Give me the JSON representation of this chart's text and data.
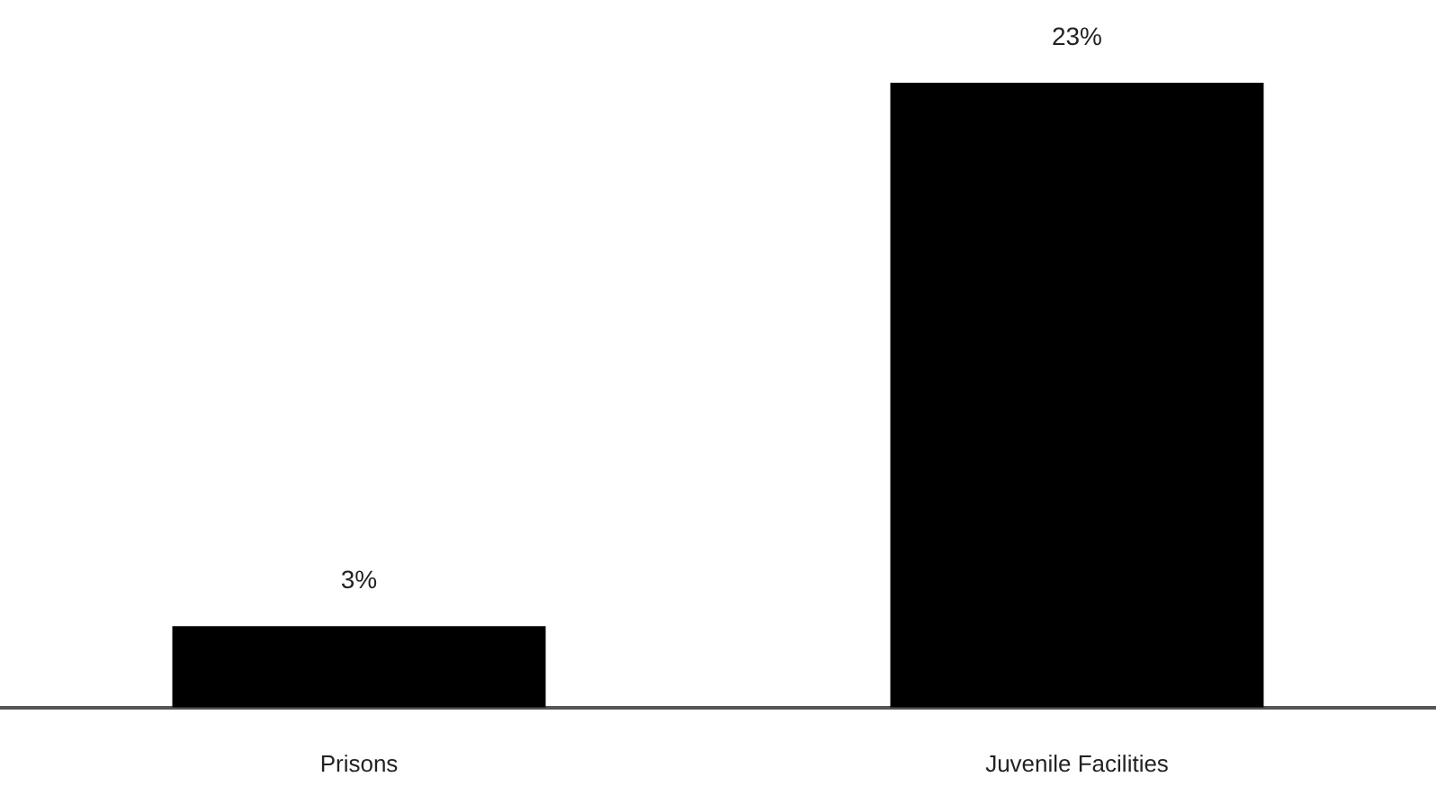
{
  "chart_data": {
    "type": "bar",
    "categories": [
      "Prisons",
      "Juvenile Facilities"
    ],
    "values": [
      3,
      23
    ],
    "color": "#000000",
    "value_labels": [
      "3%",
      "23%"
    ],
    "grid": false,
    "legend": false
  }
}
